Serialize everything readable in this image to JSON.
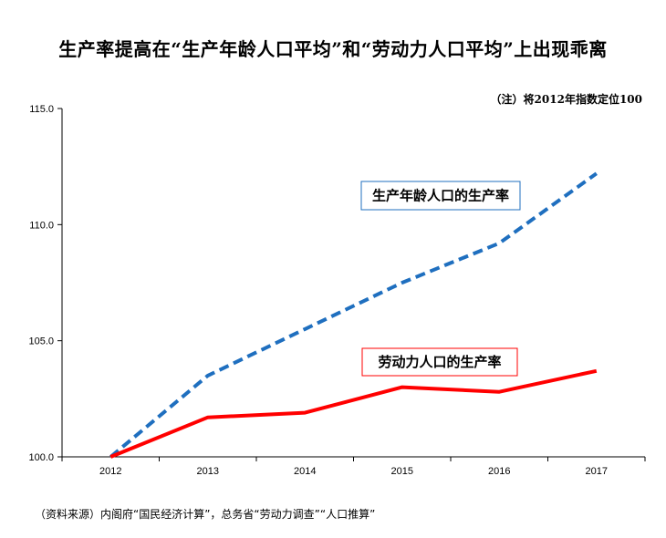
{
  "title": "生产率提高在“生产年龄人口平均”和“劳动力人口平均”上出现乖离",
  "note": "（注）将2012年指数定位100",
  "source": "（资料来源）内阁府“国民经济计算”，总务省“劳动力调查”“人口推算”",
  "chart_data": {
    "type": "line",
    "x": [
      "2012",
      "2013",
      "2014",
      "2015",
      "2016",
      "2017"
    ],
    "ylim": [
      100.0,
      115.0
    ],
    "yticks": [
      "100.0",
      "105.0",
      "110.0",
      "115.0"
    ],
    "grid": false,
    "series": [
      {
        "name": "生产年龄人口的生产率",
        "values": [
          100.0,
          103.5,
          105.5,
          107.5,
          109.2,
          112.2
        ],
        "color": "#1f6fbf",
        "style": "dashed"
      },
      {
        "name": "劳动力人口的生产率",
        "values": [
          100.0,
          101.7,
          101.9,
          103.0,
          102.8,
          103.7
        ],
        "color": "#ff0000",
        "style": "solid"
      }
    ]
  }
}
